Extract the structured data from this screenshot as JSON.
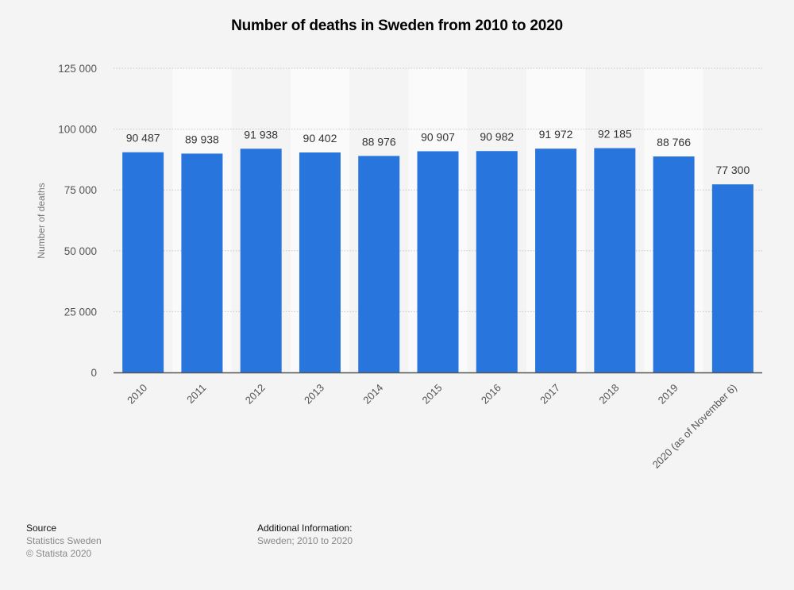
{
  "chart_data": {
    "type": "bar",
    "title": "Number of deaths in Sweden from 2010 to 2020",
    "xlabel": "",
    "ylabel": "Number of deaths",
    "categories": [
      "2010",
      "2011",
      "2012",
      "2013",
      "2014",
      "2015",
      "2016",
      "2017",
      "2018",
      "2019",
      "2020 (as of November 6)"
    ],
    "values": [
      90487,
      89938,
      91938,
      90402,
      88976,
      90907,
      90982,
      91972,
      92185,
      88766,
      77300
    ],
    "data_labels": [
      "90 487",
      "89 938",
      "91 938",
      "90 402",
      "88 976",
      "90 907",
      "90 982",
      "91 972",
      "92 185",
      "88 766",
      "77 300"
    ],
    "ylim": [
      0,
      125000
    ],
    "yticks": [
      0,
      25000,
      50000,
      75000,
      100000,
      125000
    ],
    "ytick_labels": [
      "0",
      "25 000",
      "50 000",
      "75 000",
      "100 000",
      "125 000"
    ],
    "grid": true,
    "legend": "none",
    "bar_color": "#2876dd"
  },
  "footer": {
    "source_heading": "Source",
    "source_name": "Statistics Sweden",
    "copyright": "© Statista 2020",
    "additional_heading": "Additional Information:",
    "additional_text": "Sweden; 2010 to 2020"
  }
}
